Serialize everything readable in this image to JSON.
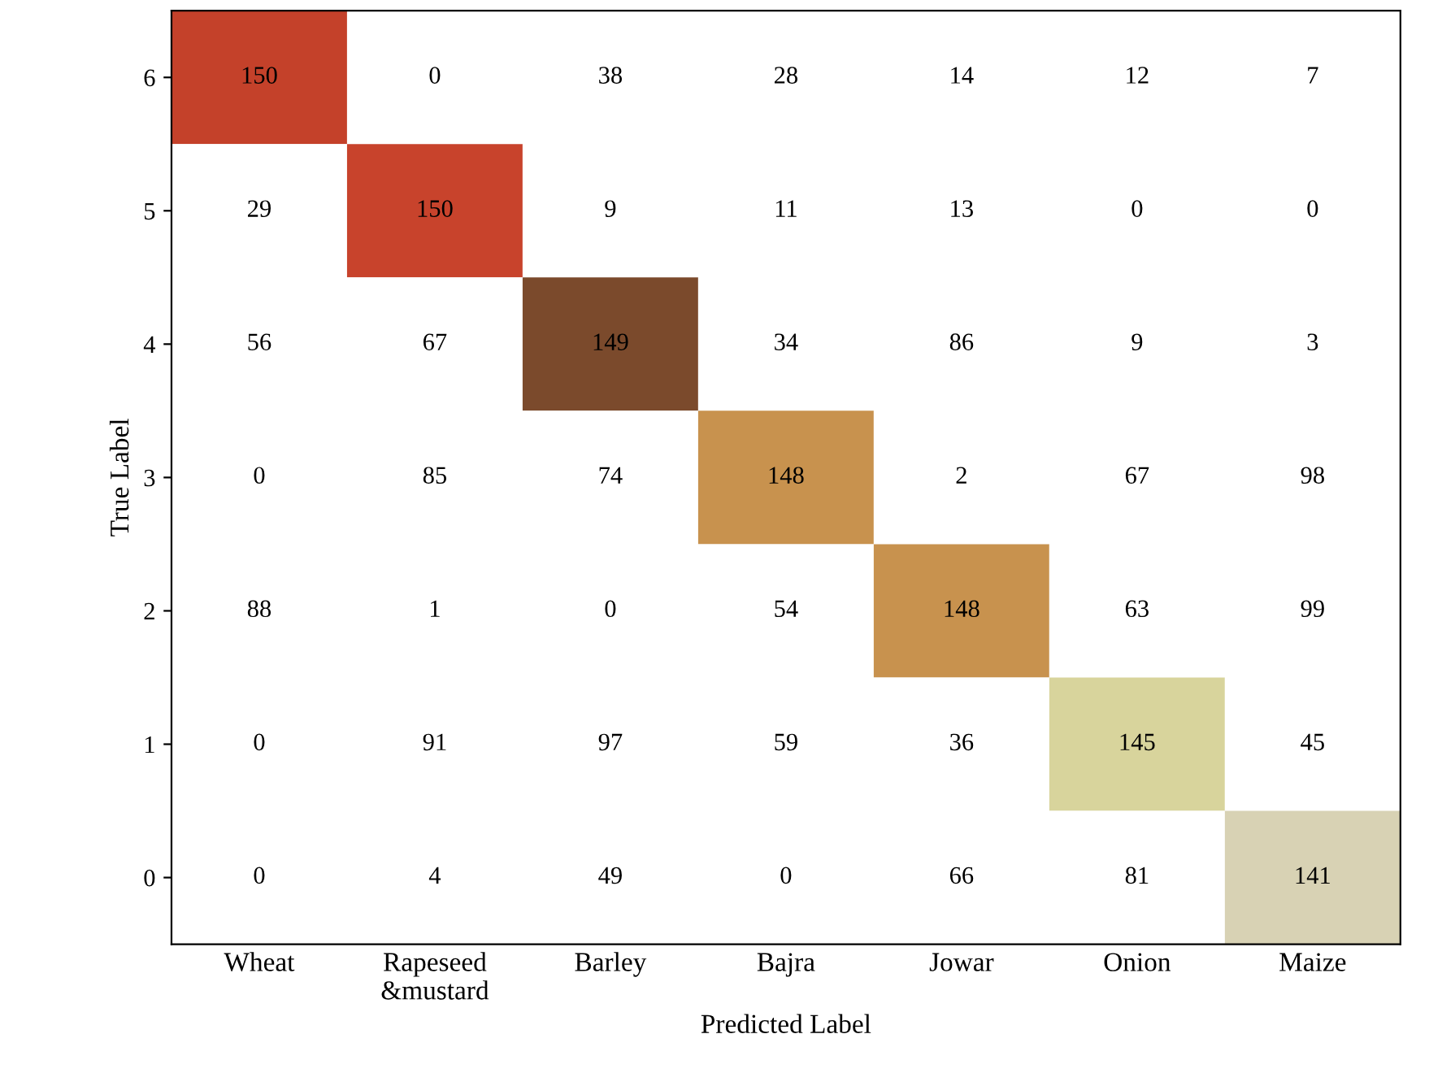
{
  "chart_data": {
    "type": "heatmap",
    "xlabel": "Predicted Label",
    "ylabel": "True Label",
    "categories": [
      "Wheat",
      "Rapeseed\n&mustard",
      "Barley",
      "Bajra",
      "Jowar",
      "Onion",
      "Maize"
    ],
    "y_categories": [
      "6",
      "5",
      "4",
      "3",
      "2",
      "1",
      "0"
    ],
    "cells": [
      [
        150,
        0,
        38,
        28,
        14,
        12,
        7
      ],
      [
        29,
        150,
        9,
        11,
        13,
        0,
        0
      ],
      [
        56,
        67,
        149,
        34,
        86,
        9,
        3
      ],
      [
        0,
        85,
        74,
        148,
        2,
        67,
        98
      ],
      [
        88,
        1,
        0,
        54,
        148,
        63,
        99
      ],
      [
        0,
        91,
        97,
        59,
        36,
        145,
        45
      ],
      [
        0,
        4,
        49,
        0,
        66,
        81,
        141
      ]
    ],
    "colors": [
      "#c4412a",
      "#c8432c",
      "#7b4a2c",
      "#c8924e",
      "#c8924e",
      "#d8d49c",
      "#d8d2b4"
    ],
    "data_labels": true,
    "grid": false
  }
}
